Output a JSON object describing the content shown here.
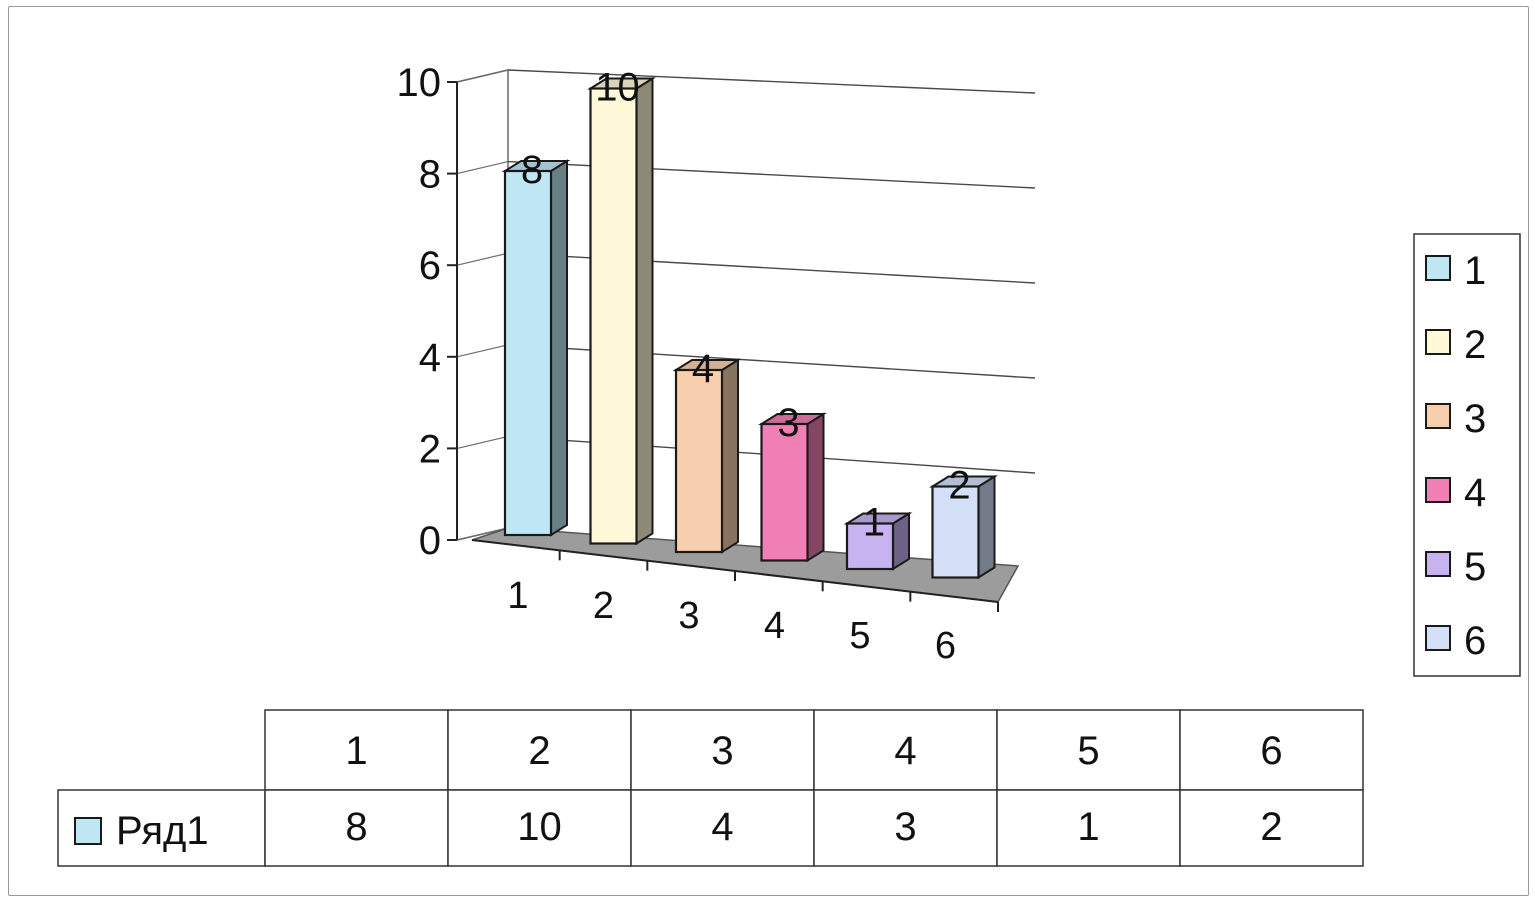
{
  "chart_data": {
    "type": "bar",
    "style": "3d-column",
    "categories": [
      "1",
      "2",
      "3",
      "4",
      "5",
      "6"
    ],
    "series": [
      {
        "name": "Ряд1",
        "values": [
          8,
          10,
          4,
          3,
          1,
          2
        ]
      }
    ],
    "point_colors": [
      "#bfe7f3",
      "#fff9d9",
      "#f7cfae",
      "#ef7fb4",
      "#c6b3ef",
      "#d3e0f7"
    ],
    "ylim": [
      0,
      10
    ],
    "y_ticks": [
      "0",
      "2",
      "4",
      "6",
      "8",
      "10"
    ],
    "grid": true,
    "legend": {
      "position": "right",
      "entries": [
        "1",
        "2",
        "3",
        "4",
        "5",
        "6"
      ]
    },
    "data_labels": [
      "8",
      "10",
      "4",
      "3",
      "1",
      "2"
    ],
    "data_table": {
      "header": [
        "1",
        "2",
        "3",
        "4",
        "5",
        "6"
      ],
      "row_label": "Ряд1",
      "row_values": [
        "8",
        "10",
        "4",
        "3",
        "1",
        "2"
      ],
      "legend_key_color": "#bfe7f3"
    }
  }
}
